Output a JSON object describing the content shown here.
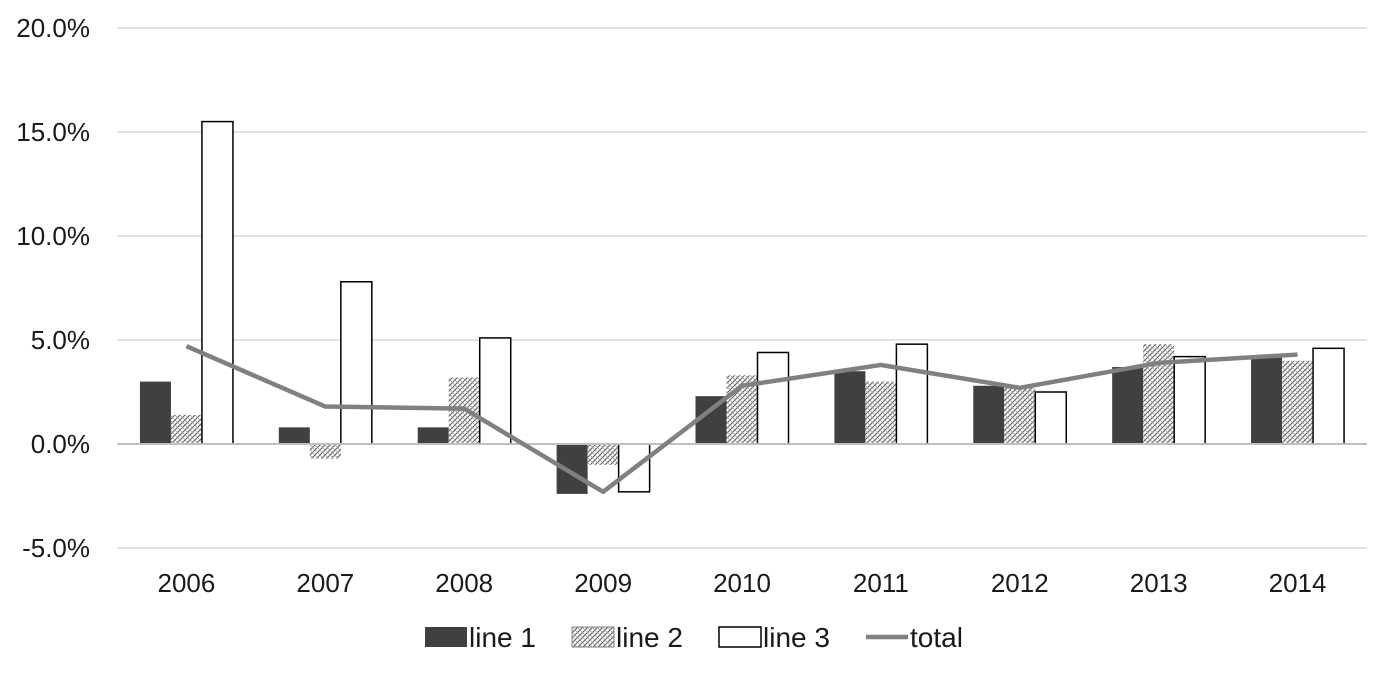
{
  "chart_data": {
    "type": "bar",
    "title": "",
    "xlabel": "",
    "ylabel": "",
    "categories": [
      "2006",
      "2007",
      "2008",
      "2009",
      "2010",
      "2011",
      "2012",
      "2013",
      "2014"
    ],
    "ylim": [
      -5.0,
      20.0
    ],
    "yticks": [
      -5.0,
      0.0,
      5.0,
      10.0,
      15.0,
      20.0
    ],
    "ytick_labels": [
      "-5.0%",
      "0.0%",
      "5.0%",
      "10.0%",
      "15.0%",
      "20.0%"
    ],
    "grid": true,
    "legend_position": "bottom",
    "series": [
      {
        "name": "line 1",
        "kind": "bar",
        "fill": "solid",
        "color": "#404040",
        "values": [
          3.0,
          0.8,
          0.8,
          -2.4,
          2.3,
          3.5,
          2.8,
          3.7,
          4.2
        ]
      },
      {
        "name": "line 2",
        "kind": "bar",
        "fill": "hatch",
        "color": "#7f7f7f",
        "values": [
          1.4,
          -0.7,
          3.2,
          -1.0,
          3.3,
          3.0,
          2.7,
          4.8,
          4.0
        ]
      },
      {
        "name": "line 3",
        "kind": "bar",
        "fill": "outline",
        "color": "#ffffff",
        "values": [
          15.5,
          7.8,
          5.1,
          -2.3,
          4.4,
          4.8,
          2.5,
          4.2,
          4.6
        ]
      },
      {
        "name": "total",
        "kind": "line",
        "color": "#808080",
        "values": [
          4.7,
          1.8,
          1.7,
          -2.3,
          2.8,
          3.8,
          2.7,
          3.9,
          4.3
        ]
      }
    ]
  }
}
